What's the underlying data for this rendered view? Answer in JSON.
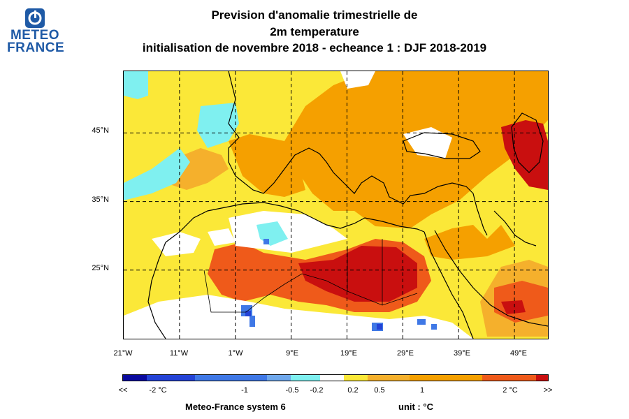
{
  "logo": {
    "line1": "METEO",
    "line2": "FRANCE",
    "color": "#1f5aa6"
  },
  "title": {
    "line1": "Prevision d'anomalie trimestrielle de",
    "line2": "2m temperature",
    "line3": "initialisation de novembre 2018  -  echeance 1 : DJF 2018-2019"
  },
  "map": {
    "lat_labels": [
      "45°N",
      "35°N",
      "25°N"
    ],
    "lon_labels": [
      "21°W",
      "11°W",
      "1°W",
      "9°E",
      "19°E",
      "29°E",
      "39°E",
      "49°E"
    ],
    "lon_range": [
      -21,
      55
    ],
    "lat_range": [
      15,
      54
    ],
    "grid_lats": [
      45,
      35,
      25
    ],
    "grid_lons": [
      -11,
      -1,
      9,
      19,
      29,
      39,
      49
    ]
  },
  "colorbar": {
    "colors": [
      "#0a0a9e",
      "#2443d6",
      "#3f78e6",
      "#6fa8ec",
      "#7ff0f0",
      "#ffffff",
      "#fbe838",
      "#f5b02c",
      "#f5a000",
      "#ef5a1a",
      "#c90f0f"
    ],
    "labels": [
      "<<",
      "-2 °C",
      "-1",
      "-0.5",
      "-0.2",
      "0.2",
      "0.5",
      "1",
      "2 °C",
      ">>"
    ]
  },
  "footer": {
    "system": "Meteo-France system 6",
    "unit": "unit :  °C"
  }
}
